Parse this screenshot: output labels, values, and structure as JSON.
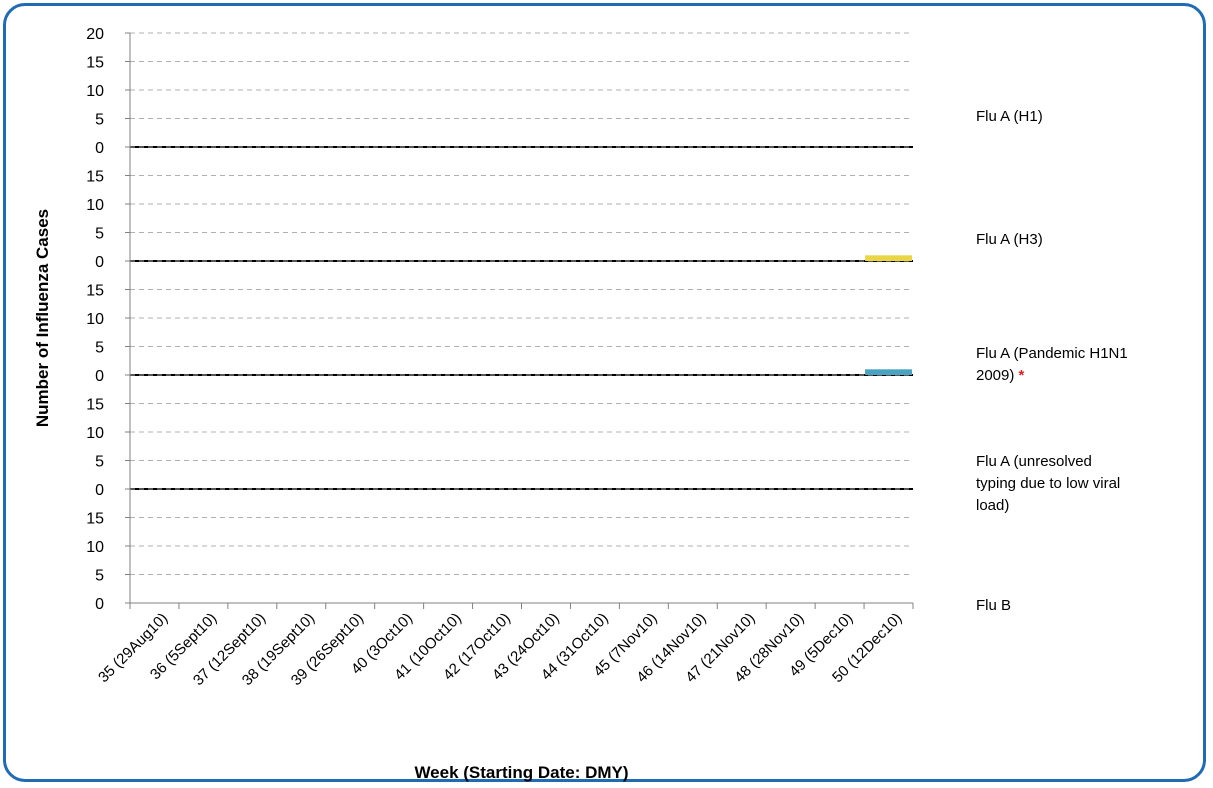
{
  "chart_data": {
    "type": "bar",
    "subtype": "stacked-panels",
    "xlabel": "Week (Starting Date: DMY)",
    "ylabel": "Number of Influenza Cases",
    "categories": [
      "35 (29Aug10)",
      "36 (5Sept10)",
      "37 (12Sept10)",
      "38 (19Sept10)",
      "39 (26Sept10)",
      "40 (3Oct10)",
      "41 (10Oct10)",
      "42 (17Oct10)",
      "43 (24Oct10)",
      "44 (31Oct10)",
      "45 (7Nov10)",
      "46 (14Nov10)",
      "47 (21Nov10)",
      "48 (28Nov10)",
      "49 (5Dec10)",
      "50 (12Dec10)"
    ],
    "ylim": [
      0,
      20
    ],
    "yticks": [
      0,
      5,
      10,
      15,
      20
    ],
    "grid": true,
    "legend_placement": "right",
    "series": [
      {
        "name": "Flu A (H1)",
        "color": "#4472c4",
        "values": [
          0,
          0,
          0,
          0,
          0,
          0,
          0,
          0,
          0,
          0,
          0,
          0,
          0,
          0,
          0,
          0
        ]
      },
      {
        "name": "Flu A (H3)",
        "color": "#ead544",
        "values": [
          0,
          0,
          0,
          0,
          0,
          0,
          0,
          0,
          0,
          0,
          0,
          0,
          0,
          0,
          0,
          1
        ]
      },
      {
        "name": "Flu A (Pandemic H1N1 2009)",
        "label_lines": [
          "Flu A (Pandemic H1N1",
          "2009)"
        ],
        "marker": "*",
        "color": "#4aa3c0",
        "values": [
          0,
          0,
          0,
          0,
          0,
          0,
          0,
          0,
          0,
          0,
          0,
          0,
          0,
          0,
          0,
          1
        ]
      },
      {
        "name": "Flu A (unresolved typing due to low viral load)",
        "label_lines": [
          "Flu A (unresolved",
          "typing due to low viral",
          "load)"
        ],
        "color": "#8064a2",
        "values": [
          0,
          0,
          0,
          0,
          0,
          0,
          0,
          0,
          0,
          0,
          0,
          0,
          0,
          0,
          0,
          0
        ]
      },
      {
        "name": "Flu B",
        "color": "#9bbb59",
        "values": [
          0,
          0,
          0,
          0,
          0,
          0,
          0,
          0,
          0,
          0,
          0,
          0,
          0,
          0,
          0,
          0
        ]
      }
    ]
  },
  "colors": {
    "frame": "#1f6bb5",
    "asterisk": "#e02020"
  }
}
